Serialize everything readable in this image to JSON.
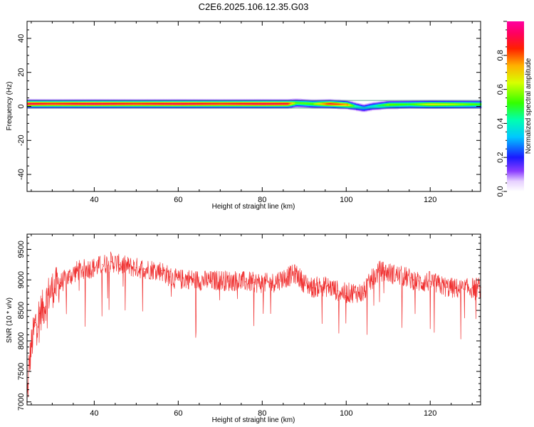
{
  "title": "C2E6.2025.106.12.35.G03",
  "chart_data": [
    {
      "type": "heatmap",
      "xlabel": "Height of straight line (km)",
      "ylabel": "Frequency (Hz)",
      "xlim": [
        24,
        132
      ],
      "ylim": [
        -50,
        50
      ],
      "xticks": [
        40,
        60,
        80,
        100,
        120
      ],
      "yticks": [
        -40,
        -20,
        0,
        20,
        40
      ],
      "colorbar": {
        "label": "Normalized spectral amplitude",
        "range": [
          0,
          1
        ],
        "ticks": [
          0.0,
          0.2,
          0.4,
          0.6,
          0.8
        ]
      },
      "ridge": {
        "x": [
          24,
          30,
          40,
          50,
          60,
          70,
          80,
          86,
          88,
          92,
          96,
          100,
          102,
          104,
          106,
          110,
          115,
          120,
          125,
          132
        ],
        "center_hz": [
          1.5,
          1.5,
          1.5,
          1.5,
          1.5,
          1.5,
          1.5,
          1.5,
          2,
          1.5,
          1.5,
          1,
          0,
          -1,
          0,
          1,
          1.2,
          1.2,
          1.2,
          1.2
        ],
        "peak_amp": [
          0.95,
          0.9,
          0.95,
          0.9,
          0.95,
          0.9,
          0.95,
          0.92,
          0.55,
          0.6,
          0.9,
          0.8,
          0.45,
          0.35,
          0.4,
          0.6,
          0.55,
          0.7,
          0.65,
          0.55
        ]
      }
    },
    {
      "type": "line",
      "xlabel": "Height of straight line (km)",
      "ylabel": "SNR (10 * v/v)",
      "xlim": [
        24,
        132
      ],
      "ylim": [
        6950,
        9750
      ],
      "xticks": [
        40,
        60,
        80,
        100,
        120
      ],
      "yticks": [
        7000,
        7500,
        8000,
        8500,
        9000,
        9500
      ],
      "series": [
        {
          "color": "#f03030",
          "x": [
            24,
            24.5,
            25,
            26,
            27,
            28,
            29,
            30,
            32,
            34,
            36,
            38,
            40,
            42,
            44,
            46,
            48,
            50,
            52,
            54,
            56,
            58,
            60,
            62,
            64,
            66,
            68,
            70,
            72,
            74,
            76,
            78,
            80,
            82,
            84,
            86,
            88,
            90,
            92,
            94,
            96,
            98,
            100,
            102,
            104,
            106,
            108,
            110,
            112,
            114,
            116,
            118,
            120,
            122,
            124,
            126,
            128,
            130,
            132
          ],
          "y": [
            7000,
            7600,
            7900,
            8300,
            8450,
            8550,
            8750,
            8850,
            8950,
            9050,
            9150,
            9180,
            9200,
            9250,
            9300,
            9250,
            9220,
            9200,
            9180,
            9170,
            9150,
            9050,
            9000,
            9020,
            9000,
            8990,
            8980,
            9000,
            8980,
            8990,
            8970,
            8960,
            8950,
            8940,
            9000,
            9050,
            9100,
            8950,
            8870,
            8900,
            8880,
            8820,
            8780,
            8800,
            8780,
            9000,
            9150,
            9120,
            9080,
            9050,
            9000,
            8950,
            8980,
            8920,
            8880,
            8860,
            8850,
            8870,
            8880
          ]
        }
      ]
    }
  ]
}
